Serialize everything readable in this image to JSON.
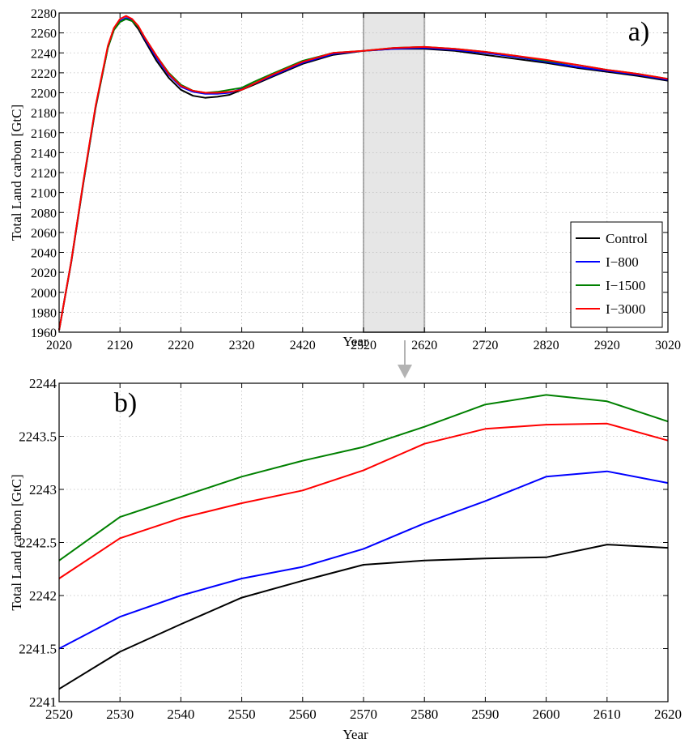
{
  "chart_data": [
    {
      "type": "line",
      "panel_label": "a)",
      "xlabel": "Year",
      "ylabel": "Total Land carbon [GtC]",
      "xlim": [
        2020,
        3020
      ],
      "ylim": [
        1960,
        2280
      ],
      "x_ticks": [
        2020,
        2120,
        2220,
        2320,
        2420,
        2520,
        2620,
        2720,
        2820,
        2920,
        3020
      ],
      "y_ticks": [
        1960,
        1980,
        2000,
        2020,
        2040,
        2060,
        2080,
        2100,
        2120,
        2140,
        2160,
        2180,
        2200,
        2220,
        2240,
        2260,
        2280
      ],
      "grid": true,
      "legend_position": "lower-right",
      "highlight_region": {
        "x_start": 2520,
        "x_end": 2620,
        "color": "#e6e6e6"
      },
      "series": [
        {
          "name": "Control",
          "color": "#000000",
          "x": [
            2020,
            2040,
            2060,
            2080,
            2100,
            2110,
            2120,
            2130,
            2140,
            2150,
            2160,
            2180,
            2200,
            2220,
            2240,
            2260,
            2280,
            2300,
            2320,
            2340,
            2370,
            2420,
            2470,
            2520,
            2570,
            2620,
            2670,
            2720,
            2770,
            2820,
            2870,
            2920,
            2970,
            3020
          ],
          "y": [
            1962,
            2030,
            2110,
            2185,
            2245,
            2263,
            2271,
            2274,
            2272,
            2264,
            2253,
            2232,
            2215,
            2203,
            2197,
            2195,
            2196,
            2198,
            2203,
            2208,
            2216,
            2229,
            2238,
            2242,
            2244,
            2244,
            2242,
            2238,
            2234,
            2230,
            2225,
            2221,
            2217,
            2212
          ]
        },
        {
          "name": "I−800",
          "color": "#0000ff",
          "x": [
            2020,
            2040,
            2060,
            2080,
            2100,
            2110,
            2120,
            2130,
            2140,
            2150,
            2160,
            2180,
            2200,
            2220,
            2240,
            2260,
            2280,
            2300,
            2320,
            2340,
            2370,
            2420,
            2470,
            2520,
            2570,
            2620,
            2670,
            2720,
            2770,
            2820,
            2870,
            2920,
            2970,
            3020
          ],
          "y": [
            1962,
            2031,
            2111,
            2186,
            2246,
            2264,
            2272,
            2275,
            2273,
            2266,
            2255,
            2235,
            2218,
            2206,
            2201,
            2199,
            2199,
            2200,
            2204,
            2209,
            2217,
            2230,
            2239,
            2242,
            2244,
            2245,
            2243,
            2240,
            2236,
            2231,
            2226,
            2222,
            2218,
            2213
          ]
        },
        {
          "name": "I−1500",
          "color": "#008000",
          "x": [
            2020,
            2040,
            2060,
            2080,
            2100,
            2110,
            2120,
            2130,
            2140,
            2150,
            2160,
            2180,
            2200,
            2220,
            2240,
            2260,
            2280,
            2300,
            2320,
            2340,
            2370,
            2420,
            2470,
            2520,
            2570,
            2620,
            2670,
            2720,
            2770,
            2820,
            2870,
            2920,
            2970,
            3020
          ],
          "y": [
            1962,
            2031,
            2111,
            2186,
            2245,
            2263,
            2271,
            2274,
            2272,
            2266,
            2256,
            2237,
            2220,
            2208,
            2202,
            2200,
            2201,
            2203,
            2205,
            2211,
            2219,
            2232,
            2240,
            2242,
            2245,
            2246,
            2244,
            2241,
            2237,
            2232,
            2228,
            2223,
            2219,
            2214
          ]
        },
        {
          "name": "I−3000",
          "color": "#ff0000",
          "x": [
            2020,
            2040,
            2060,
            2080,
            2100,
            2110,
            2120,
            2130,
            2140,
            2150,
            2160,
            2180,
            2200,
            2220,
            2240,
            2260,
            2280,
            2300,
            2320,
            2340,
            2370,
            2420,
            2470,
            2520,
            2570,
            2620,
            2670,
            2720,
            2770,
            2820,
            2870,
            2920,
            2970,
            3020
          ],
          "y": [
            1962,
            2031,
            2112,
            2187,
            2247,
            2265,
            2274,
            2277,
            2274,
            2267,
            2256,
            2237,
            2219,
            2207,
            2202,
            2200,
            2200,
            2201,
            2203,
            2209,
            2218,
            2231,
            2240,
            2242,
            2245,
            2246,
            2244,
            2241,
            2237,
            2233,
            2228,
            2223,
            2219,
            2214
          ]
        }
      ]
    },
    {
      "type": "line",
      "panel_label": "b)",
      "xlabel": "Year",
      "ylabel": "Total Land carbon [GtC]",
      "xlim": [
        2520,
        2620
      ],
      "ylim": [
        2241,
        2244
      ],
      "x_ticks": [
        2520,
        2530,
        2540,
        2550,
        2560,
        2570,
        2580,
        2590,
        2600,
        2610,
        2620
      ],
      "y_ticks": [
        2241,
        2241.5,
        2242,
        2242.5,
        2243,
        2243.5,
        2244
      ],
      "grid": true,
      "x": [
        2520,
        2530,
        2540,
        2550,
        2560,
        2570,
        2580,
        2590,
        2600,
        2610,
        2620
      ],
      "series": [
        {
          "name": "Control",
          "color": "#000000",
          "values": [
            2241.12,
            2241.47,
            2241.73,
            2241.98,
            2242.14,
            2242.29,
            2242.33,
            2242.35,
            2242.36,
            2242.48,
            2242.45
          ]
        },
        {
          "name": "I−800",
          "color": "#0000ff",
          "values": [
            2241.5,
            2241.8,
            2242.0,
            2242.16,
            2242.27,
            2242.44,
            2242.68,
            2242.89,
            2243.12,
            2243.17,
            2243.06
          ]
        },
        {
          "name": "I−1500",
          "color": "#008000",
          "values": [
            2242.33,
            2242.74,
            2242.93,
            2243.12,
            2243.27,
            2243.4,
            2243.59,
            2243.8,
            2243.89,
            2243.83,
            2243.64
          ]
        },
        {
          "name": "I−3000",
          "color": "#ff0000",
          "values": [
            2242.16,
            2242.54,
            2242.73,
            2242.87,
            2242.99,
            2243.18,
            2243.43,
            2243.57,
            2243.61,
            2243.62,
            2243.46
          ]
        }
      ]
    }
  ],
  "connector_arrow_color": "#b3b3b3"
}
